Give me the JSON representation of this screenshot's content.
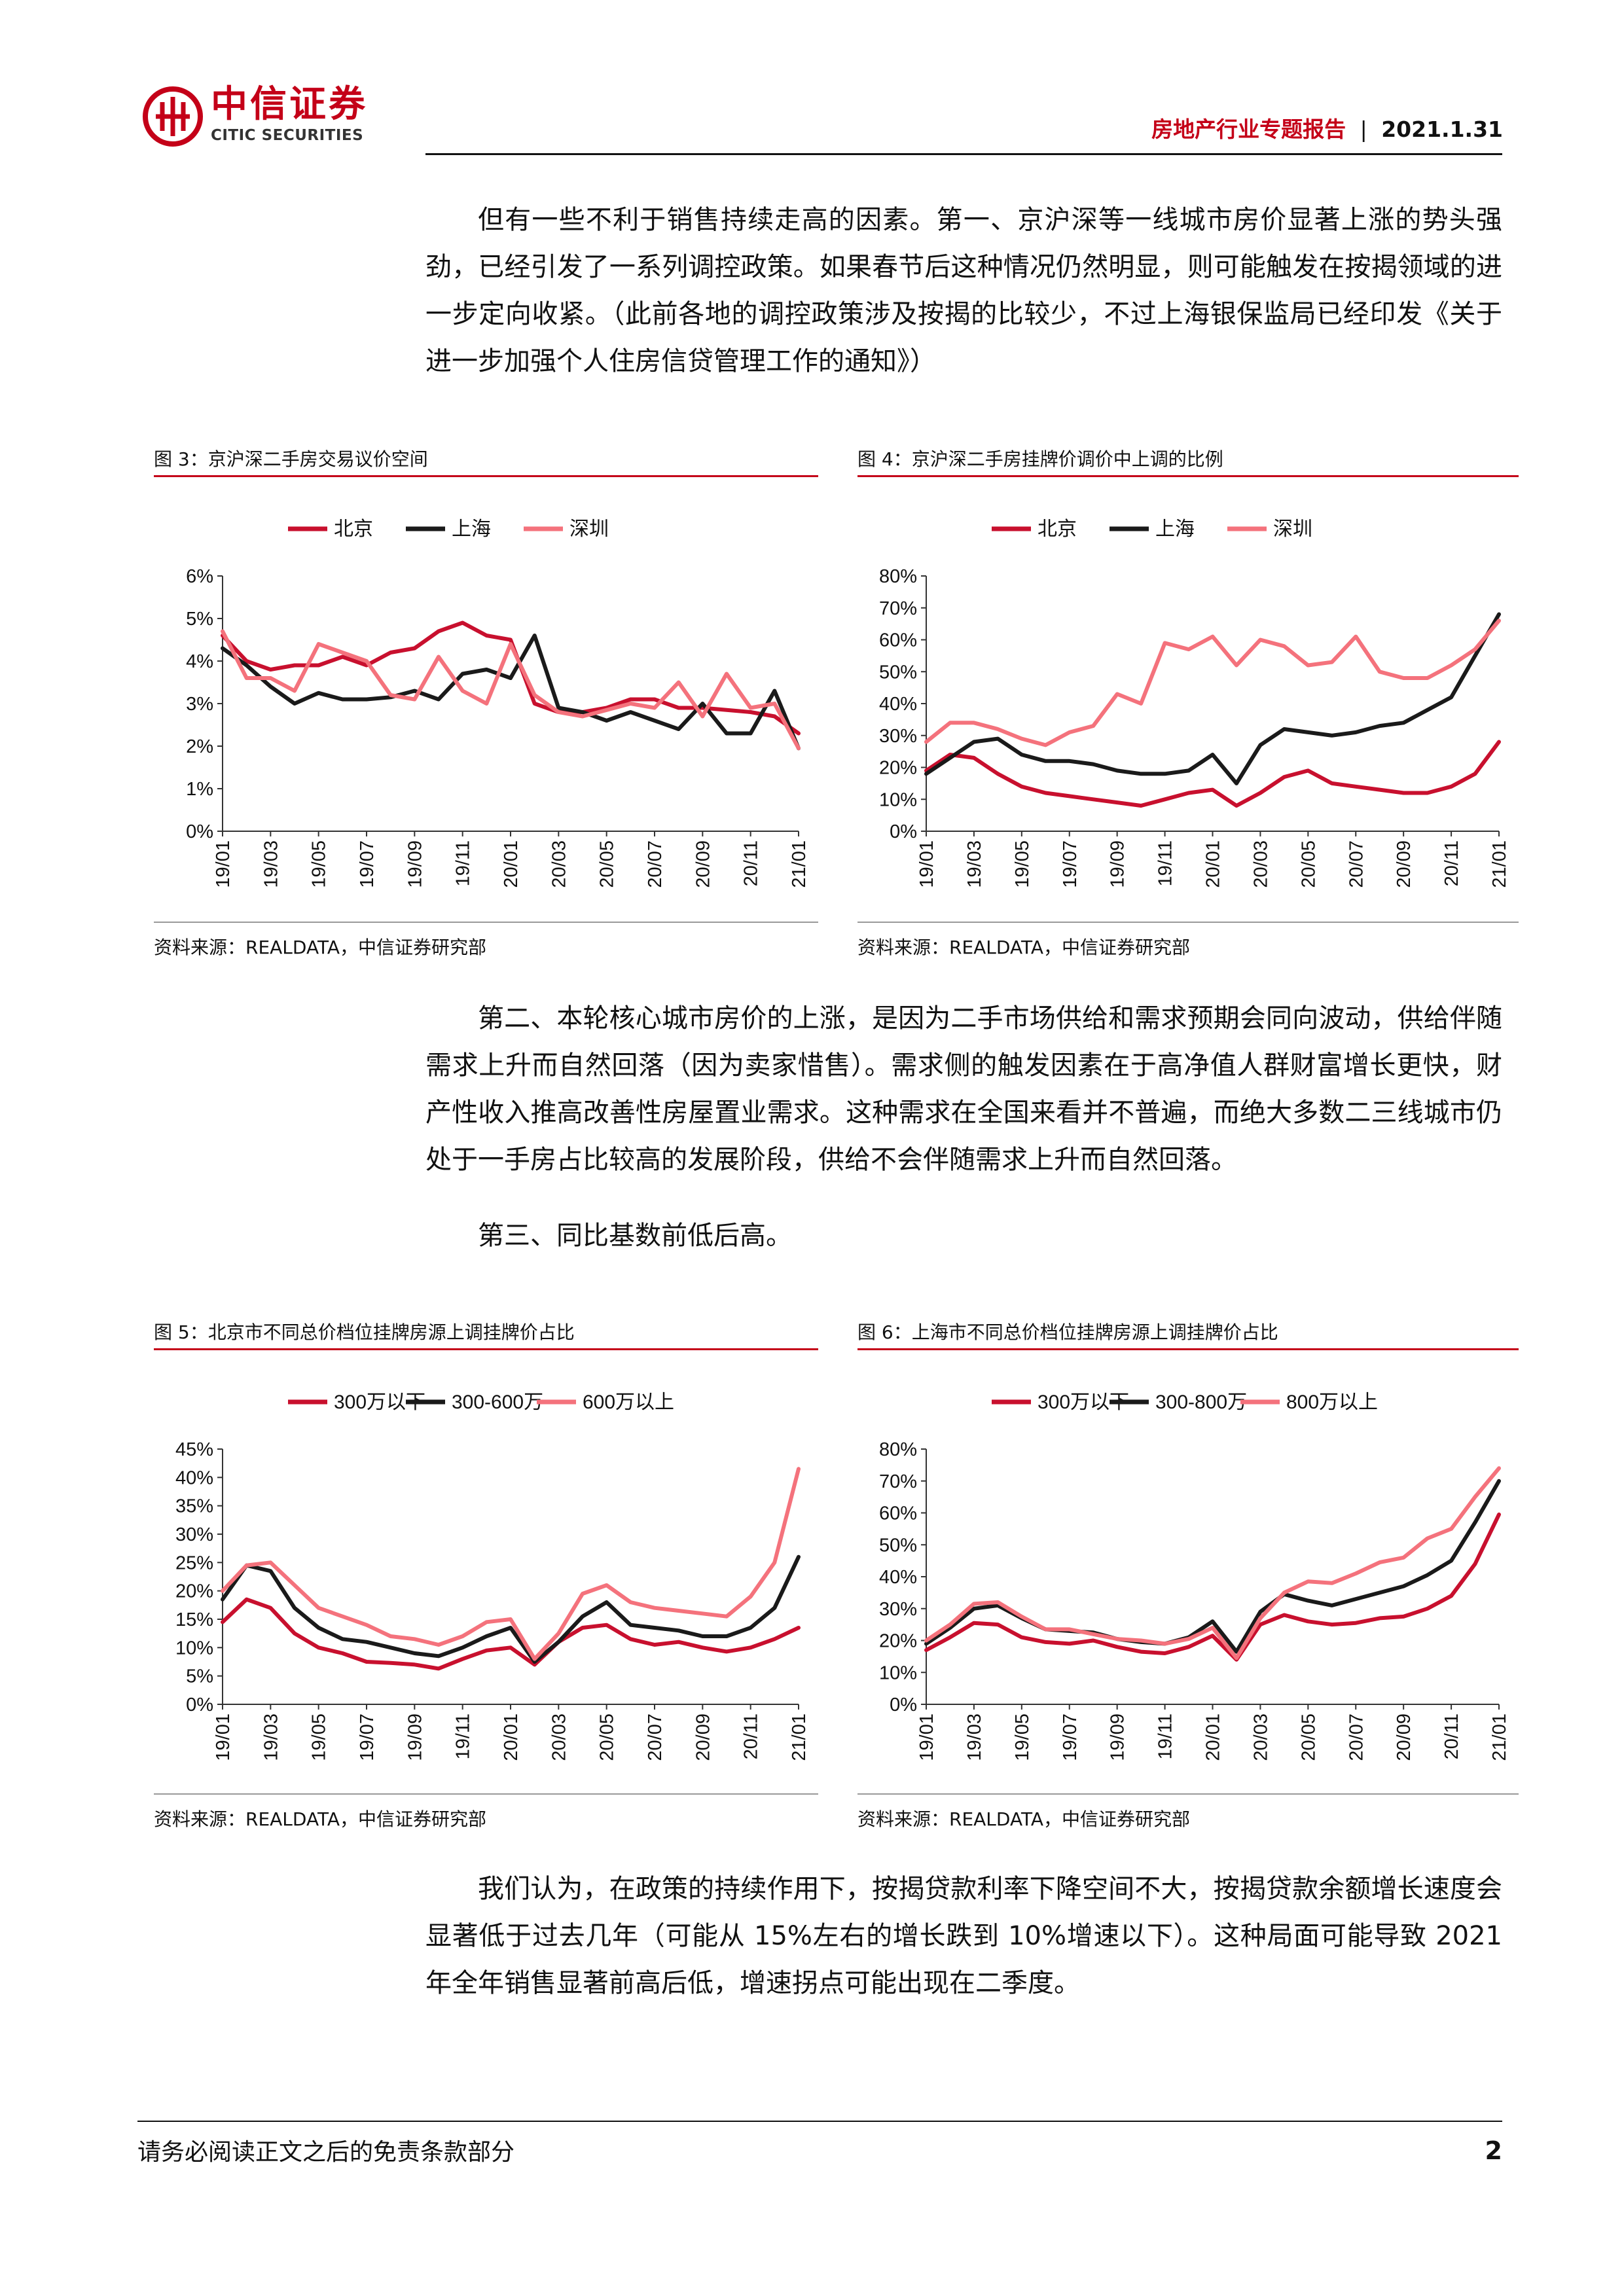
{
  "header": {
    "brand_cn": "中信证券",
    "brand_en": "CITIC SECURITIES",
    "report_type": "房地产行业专题报告",
    "separator": "|",
    "date": "2021.1.31"
  },
  "body": {
    "para1": "但有一些不利于销售持续走高的因素。第一、京沪深等一线城市房价显著上涨的势头强劲，已经引发了一系列调控政策。如果春节后这种情况仍然明显，则可能触发在按揭领域的进一步定向收紧。（此前各地的调控政策涉及按揭的比较少，不过上海银保监局已经印发《关于进一步加强个人住房信贷管理工作的通知》）",
    "para2": "第二、本轮核心城市房价的上涨，是因为二手市场供给和需求预期会同向波动，供给伴随需求上升而自然回落（因为卖家惜售）。需求侧的触发因素在于高净值人群财富增长更快，财产性收入推高改善性房屋置业需求。这种需求在全国来看并不普遍，而绝大多数二三线城市仍处于一手房占比较高的发展阶段，供给不会伴随需求上升而自然回落。",
    "para3": "第三、同比基数前低后高。",
    "para4": "我们认为，在政策的持续作用下，按揭贷款利率下降空间不大，按揭贷款余额增长速度会显著低于过去几年（可能从 15%左右的增长跌到 10%增速以下）。这种局面可能导致 2021 年全年销售显著前高后低，增速拐点可能出现在二季度。"
  },
  "colors": {
    "red": "#c8102e",
    "black": "#1a1a1a",
    "pink": "#f4727c",
    "brand": "#c40018"
  },
  "figures": [
    {
      "title": "图 3：京沪深二手房交易议价空间",
      "source": "资料来源：REALDATA，中信证券研究部"
    },
    {
      "title": "图 4：京沪深二手房挂牌价调价中上调的比例",
      "source": "资料来源：REALDATA，中信证券研究部"
    },
    {
      "title": "图 5：北京市不同总价档位挂牌房源上调挂牌价占比",
      "source": "资料来源：REALDATA，中信证券研究部"
    },
    {
      "title": "图 6：上海市不同总价档位挂牌房源上调挂牌价占比",
      "source": "资料来源：REALDATA，中信证券研究部"
    }
  ],
  "chart_data": [
    {
      "type": "line",
      "x": [
        "19/01",
        "19/02",
        "19/03",
        "19/04",
        "19/05",
        "19/06",
        "19/07",
        "19/08",
        "19/09",
        "19/10",
        "19/11",
        "19/12",
        "20/01",
        "20/02",
        "20/03",
        "20/04",
        "20/05",
        "20/06",
        "20/07",
        "20/08",
        "20/09",
        "20/10",
        "20/11",
        "20/12",
        "21/01"
      ],
      "xticks": [
        "19/01",
        "19/03",
        "19/05",
        "19/07",
        "19/09",
        "19/11",
        "20/01",
        "20/03",
        "20/05",
        "20/07",
        "20/09",
        "20/11",
        "21/01"
      ],
      "yticks": [
        "0%",
        "1%",
        "2%",
        "3%",
        "4%",
        "5%",
        "6%"
      ],
      "ylim": [
        0,
        6
      ],
      "legend": "top",
      "series": [
        {
          "name": "北京",
          "color": "#c8102e",
          "values": [
            4.6,
            4.0,
            3.8,
            3.9,
            3.9,
            4.1,
            3.9,
            4.2,
            4.3,
            4.7,
            4.9,
            4.6,
            4.5,
            3.0,
            2.8,
            2.8,
            2.9,
            3.1,
            3.1,
            2.9,
            2.9,
            2.85,
            2.8,
            2.7,
            2.3
          ]
        },
        {
          "name": "上海",
          "color": "#1a1a1a",
          "values": [
            4.3,
            3.9,
            3.4,
            3.0,
            3.25,
            3.1,
            3.1,
            3.15,
            3.3,
            3.1,
            3.7,
            3.8,
            3.6,
            4.6,
            2.9,
            2.8,
            2.6,
            2.8,
            2.6,
            2.4,
            3.0,
            2.3,
            2.3,
            3.3,
            1.95
          ]
        },
        {
          "name": "深圳",
          "color": "#f4727c",
          "values": [
            4.7,
            3.6,
            3.6,
            3.3,
            4.4,
            4.2,
            4.0,
            3.2,
            3.1,
            4.1,
            3.3,
            3.0,
            4.4,
            3.2,
            2.8,
            2.7,
            2.85,
            3.0,
            2.9,
            3.5,
            2.7,
            3.7,
            2.9,
            3.0,
            1.95
          ]
        }
      ]
    },
    {
      "type": "line",
      "x": [
        "19/01",
        "19/02",
        "19/03",
        "19/04",
        "19/05",
        "19/06",
        "19/07",
        "19/08",
        "19/09",
        "19/10",
        "19/11",
        "19/12",
        "20/01",
        "20/02",
        "20/03",
        "20/04",
        "20/05",
        "20/06",
        "20/07",
        "20/08",
        "20/09",
        "20/10",
        "20/11",
        "20/12",
        "21/01"
      ],
      "xticks": [
        "19/01",
        "19/03",
        "19/05",
        "19/07",
        "19/09",
        "19/11",
        "20/01",
        "20/03",
        "20/05",
        "20/07",
        "20/09",
        "20/11",
        "21/01"
      ],
      "yticks": [
        "0%",
        "10%",
        "20%",
        "30%",
        "40%",
        "50%",
        "60%",
        "70%",
        "80%"
      ],
      "ylim": [
        0,
        80
      ],
      "legend": "top",
      "series": [
        {
          "name": "北京",
          "color": "#c8102e",
          "values": [
            19,
            24,
            23,
            18,
            14,
            12,
            11,
            10,
            9,
            8,
            10,
            12,
            13,
            8,
            12,
            17,
            19,
            15,
            14,
            13,
            12,
            12,
            14,
            18,
            28
          ]
        },
        {
          "name": "上海",
          "color": "#1a1a1a",
          "values": [
            18,
            23,
            28,
            29,
            24,
            22,
            22,
            21,
            19,
            18,
            18,
            19,
            24,
            15,
            27,
            32,
            31,
            30,
            31,
            33,
            34,
            38,
            42,
            55,
            68
          ]
        },
        {
          "name": "深圳",
          "color": "#f4727c",
          "values": [
            28,
            34,
            34,
            32,
            29,
            27,
            31,
            33,
            43,
            40,
            59,
            57,
            61,
            52,
            60,
            58,
            52,
            53,
            61,
            50,
            48,
            48,
            52,
            57,
            66
          ]
        }
      ]
    },
    {
      "type": "line",
      "x": [
        "19/01",
        "19/02",
        "19/03",
        "19/04",
        "19/05",
        "19/06",
        "19/07",
        "19/08",
        "19/09",
        "19/10",
        "19/11",
        "19/12",
        "20/01",
        "20/02",
        "20/03",
        "20/04",
        "20/05",
        "20/06",
        "20/07",
        "20/08",
        "20/09",
        "20/10",
        "20/11",
        "20/12",
        "21/01"
      ],
      "xticks": [
        "19/01",
        "19/03",
        "19/05",
        "19/07",
        "19/09",
        "19/11",
        "20/01",
        "20/03",
        "20/05",
        "20/07",
        "20/09",
        "20/11",
        "21/01"
      ],
      "yticks": [
        "0%",
        "5%",
        "10%",
        "15%",
        "20%",
        "25%",
        "30%",
        "35%",
        "40%",
        "45%"
      ],
      "ylim": [
        0,
        45
      ],
      "legend": "top",
      "series": [
        {
          "name": "300万以下",
          "color": "#c8102e",
          "values": [
            14.5,
            18.5,
            17,
            12.5,
            10,
            9,
            7.5,
            7.3,
            7,
            6.3,
            8,
            9.5,
            10,
            7,
            11,
            13.5,
            14,
            11.5,
            10.5,
            11,
            10,
            9.3,
            10,
            11.5,
            13.5
          ]
        },
        {
          "name": "300-600万",
          "color": "#1a1a1a",
          "values": [
            18.5,
            24.5,
            23.5,
            17,
            13.5,
            11.5,
            11,
            10,
            9,
            8.5,
            10,
            12,
            13.5,
            7.5,
            11,
            15.5,
            18,
            14,
            13.5,
            13,
            12,
            12,
            13.5,
            17,
            26
          ]
        },
        {
          "name": "600万以上",
          "color": "#f4727c",
          "values": [
            20,
            24.5,
            25,
            21,
            17,
            15.5,
            14,
            12,
            11.5,
            10.5,
            12,
            14.5,
            15,
            8,
            12.5,
            19.5,
            21,
            18,
            17,
            16.5,
            16,
            15.5,
            19,
            25,
            41.5
          ]
        }
      ]
    },
    {
      "type": "line",
      "x": [
        "19/01",
        "19/02",
        "19/03",
        "19/04",
        "19/05",
        "19/06",
        "19/07",
        "19/08",
        "19/09",
        "19/10",
        "19/11",
        "19/12",
        "20/01",
        "20/02",
        "20/03",
        "20/04",
        "20/05",
        "20/06",
        "20/07",
        "20/08",
        "20/09",
        "20/10",
        "20/11",
        "20/12",
        "21/01"
      ],
      "xticks": [
        "19/01",
        "19/03",
        "19/05",
        "19/07",
        "19/09",
        "19/11",
        "20/01",
        "20/03",
        "20/05",
        "20/07",
        "20/09",
        "20/11",
        "21/01"
      ],
      "yticks": [
        "0%",
        "10%",
        "20%",
        "30%",
        "40%",
        "50%",
        "60%",
        "70%",
        "80%"
      ],
      "ylim": [
        0,
        80
      ],
      "legend": "top",
      "series": [
        {
          "name": "300万以下",
          "color": "#c8102e",
          "values": [
            17,
            21,
            25.5,
            25,
            21,
            19.5,
            19,
            20,
            18,
            16.5,
            16,
            18,
            21.5,
            14,
            25,
            28,
            26,
            25,
            25.5,
            27,
            27.5,
            30,
            34,
            44,
            59.5
          ]
        },
        {
          "name": "300-800万",
          "color": "#1a1a1a",
          "values": [
            19,
            24,
            30,
            31,
            27,
            23.5,
            23,
            22.5,
            20.5,
            19.5,
            19,
            21,
            26,
            16.5,
            29,
            34.5,
            32.5,
            31,
            33,
            35,
            37,
            40.5,
            45,
            57,
            70
          ]
        },
        {
          "name": "800万以上",
          "color": "#f4727c",
          "values": [
            20,
            25,
            31.5,
            32,
            27.5,
            23.5,
            23.5,
            22,
            20.5,
            20,
            19,
            20.5,
            24,
            14.5,
            27,
            35,
            38.5,
            38,
            41,
            44.5,
            46,
            52,
            55,
            65,
            74
          ]
        }
      ]
    }
  ],
  "footer": {
    "disclaimer": "请务必阅读正文之后的免责条款部分",
    "page_number": "2"
  }
}
